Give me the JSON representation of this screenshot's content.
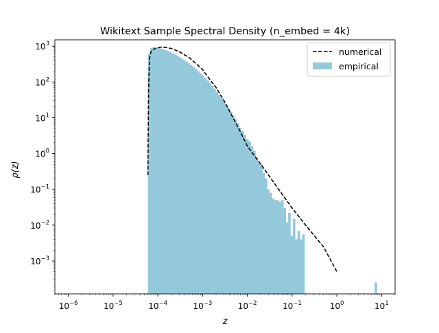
{
  "chart_data": {
    "type": "bar",
    "title": "Wikitext Sample Spectral Density (n_embed = 4k)",
    "xlabel": "z",
    "ylabel": "ρ(z)",
    "xscale": "log",
    "yscale": "log",
    "xlim": [
      5e-07,
      20
    ],
    "ylim": [
      0.00012,
      1500
    ],
    "grid": false,
    "legend": "top-right",
    "x_ticks": [
      {
        "base": "10",
        "exp": "−6",
        "value": 1e-06
      },
      {
        "base": "10",
        "exp": "−5",
        "value": 1e-05
      },
      {
        "base": "10",
        "exp": "−4",
        "value": 0.0001
      },
      {
        "base": "10",
        "exp": "−3",
        "value": 0.001
      },
      {
        "base": "10",
        "exp": "−2",
        "value": 0.01
      },
      {
        "base": "10",
        "exp": "−1",
        "value": 0.1
      },
      {
        "base": "10",
        "exp": "0",
        "value": 1
      },
      {
        "base": "10",
        "exp": "1",
        "value": 10
      }
    ],
    "y_ticks": [
      {
        "base": "10",
        "exp": "−3",
        "value": 0.001
      },
      {
        "base": "10",
        "exp": "−2",
        "value": 0.01
      },
      {
        "base": "10",
        "exp": "−1",
        "value": 0.1
      },
      {
        "base": "10",
        "exp": "0",
        "value": 1
      },
      {
        "base": "10",
        "exp": "1",
        "value": 10
      },
      {
        "base": "10",
        "exp": "2",
        "value": 100
      },
      {
        "base": "10",
        "exp": "3",
        "value": 1000
      }
    ],
    "series": [
      {
        "name": "numerical",
        "kind": "line",
        "style": "dashed",
        "color": "#000000",
        "x": [
          6e-05,
          6.05e-05,
          6.2e-05,
          6.5e-05,
          7e-05,
          8e-05,
          0.0001,
          0.00012,
          0.00015,
          0.0002,
          0.0003,
          0.0005,
          0.0007,
          0.001,
          0.0015,
          0.002,
          0.003,
          0.005,
          0.007,
          0.01,
          0.02,
          0.05,
          0.1,
          0.2,
          0.5,
          1.0
        ],
        "y": [
          0.25,
          1.5,
          50,
          450,
          700,
          820,
          900,
          940,
          920,
          860,
          700,
          480,
          330,
          220,
          110,
          70,
          30,
          9.0,
          4.0,
          1.6,
          0.5,
          0.1,
          0.03,
          0.01,
          0.0025,
          0.0005
        ]
      },
      {
        "name": "empirical",
        "kind": "histogram",
        "color": "#94c9dc",
        "x_min": 6e-05,
        "x_max": 10,
        "bins": 100,
        "values": [
          600,
          890,
          950,
          930,
          900,
          860,
          820,
          780,
          735,
          690,
          640,
          590,
          540,
          495,
          450,
          410,
          370,
          330,
          295,
          262,
          230,
          200,
          172,
          150,
          128,
          110,
          95,
          78,
          65,
          53,
          43,
          35,
          29,
          23,
          18.5,
          14.5,
          11.5,
          9,
          7,
          5.2,
          4.2,
          3.3,
          2.5,
          2.2,
          1.6,
          1.2,
          0.8,
          0.55,
          0.5,
          0.28,
          0.2,
          0.1,
          0.08,
          0.055,
          0.05,
          0.05,
          0.045,
          0.05,
          0.03,
          0.012,
          0.022,
          0.005,
          0.015,
          0.004,
          0.007,
          0.004,
          0.0055,
          0,
          0,
          0,
          0,
          0,
          0,
          0,
          0,
          0,
          0,
          0,
          0,
          0,
          0,
          0,
          0,
          0,
          0,
          0,
          0,
          0,
          0,
          0,
          0,
          0,
          0,
          0,
          0,
          0,
          0,
          0.00025,
          0,
          0
        ]
      }
    ]
  }
}
